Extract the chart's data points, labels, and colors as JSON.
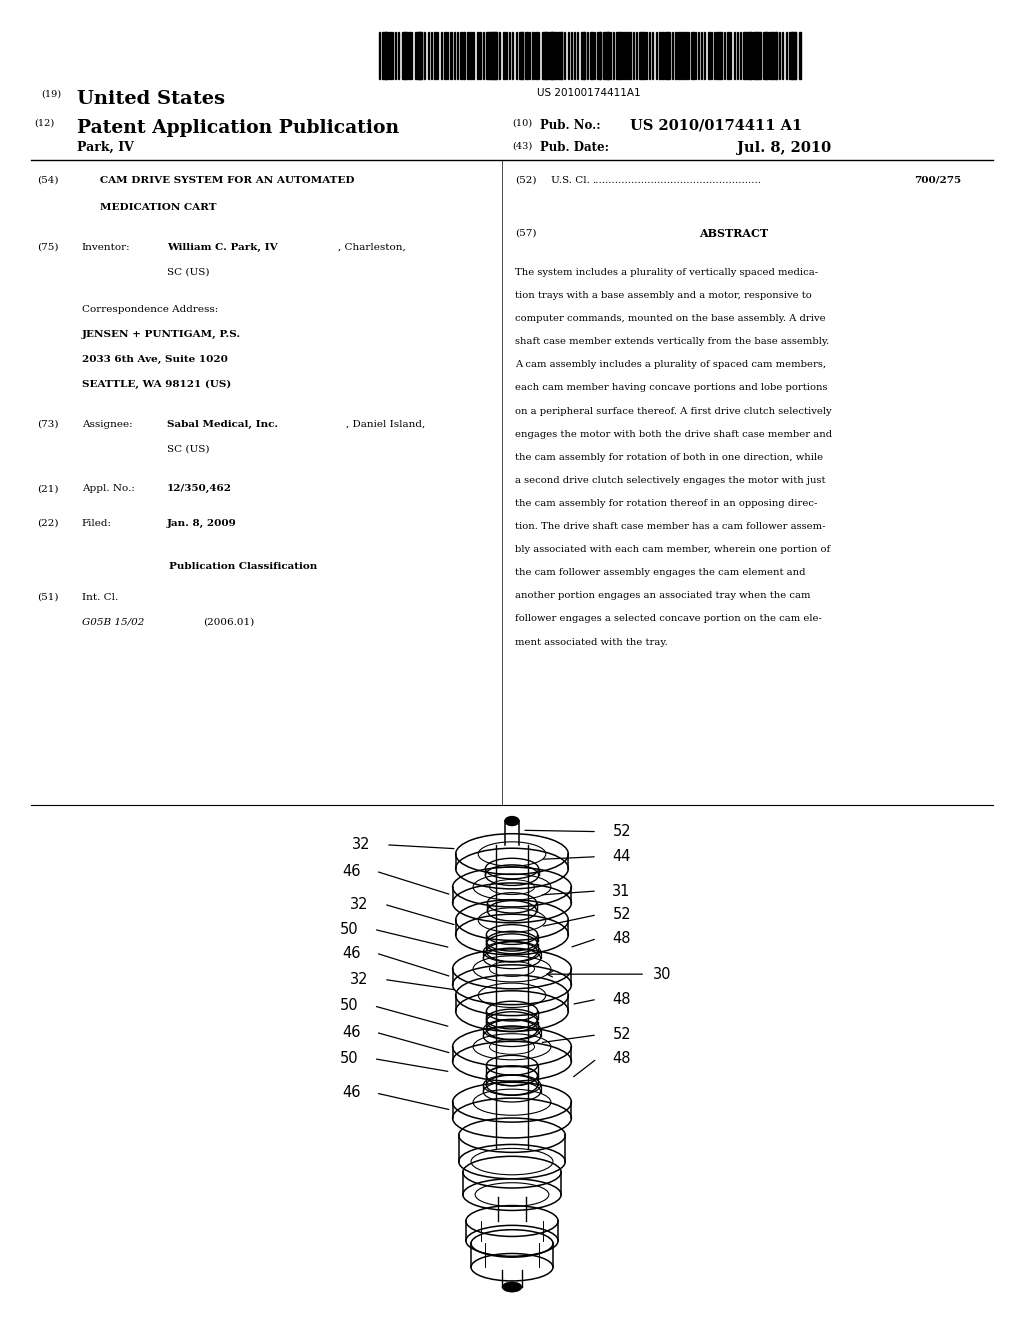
{
  "background_color": "#ffffff",
  "barcode_text": "US 20100174411A1",
  "header": {
    "number_19": "(19)",
    "us_label": "United States",
    "number_12": "(12)",
    "pub_label": "Patent Application Publication",
    "inventor_name": "Park, IV",
    "number_10": "(10)",
    "pub_no_label": "Pub. No.:",
    "pub_no": "US 2010/0174411 A1",
    "number_43": "(43)",
    "pub_date_label": "Pub. Date:",
    "pub_date": "Jul. 8, 2010"
  },
  "left_col": {
    "item54_num": "(54)",
    "item54_title_line1": "CAM DRIVE SYSTEM FOR AN AUTOMATED",
    "item54_title_line2": "MEDICATION CART",
    "item75_num": "(75)",
    "item75_label": "Inventor:",
    "item75_name_bold": "William C. Park, IV",
    "item75_name_rest": ", Charleston,",
    "item75_value_line2": "SC (US)",
    "corr_label": "Correspondence Address:",
    "corr_line1": "JENSEN + PUNTIGAM, P.S.",
    "corr_line2": "2033 6th Ave, Suite 1020",
    "corr_line3": "SEATTLE, WA 98121 (US)",
    "item73_num": "(73)",
    "item73_label": "Assignee:",
    "item73_name_bold": "Sabal Medical, Inc.",
    "item73_name_rest": ", Daniel Island,",
    "item73_value_line2": "SC (US)",
    "item21_num": "(21)",
    "item21_label": "Appl. No.:",
    "item21_value": "12/350,462",
    "item22_num": "(22)",
    "item22_label": "Filed:",
    "item22_value": "Jan. 8, 2009",
    "pub_class_label": "Publication Classification",
    "item51_num": "(51)",
    "item51_label": "Int. Cl.",
    "item51_class": "G05B 15/02",
    "item51_year": "(2006.01)"
  },
  "right_col": {
    "item52_num": "(52)",
    "item52_label": "U.S. Cl.",
    "item52_dots": "....................................................",
    "item52_value": "700/275",
    "item57_num": "(57)",
    "abstract_title": "ABSTRACT",
    "abstract_lines": [
      "The system includes a plurality of vertically spaced medica-",
      "tion trays with a base assembly and a motor, responsive to",
      "computer commands, mounted on the base assembly. A drive",
      "shaft case member extends vertically from the base assembly.",
      "A cam assembly includes a plurality of spaced cam members,",
      "each cam member having concave portions and lobe portions",
      "on a peripheral surface thereof. A first drive clutch selectively",
      "engages the motor with both the drive shaft case member and",
      "the cam assembly for rotation of both in one direction, while",
      "a second drive clutch selectively engages the motor with just",
      "the cam assembly for rotation thereof in an opposing direc-",
      "tion. The drive shaft case member has a cam follower assem-",
      "bly associated with each cam member, wherein one portion of",
      "the cam follower assembly engages the cam element and",
      "another portion engages an associated tray when the cam",
      "follower engages a selected concave portion on the cam ele-",
      "ment associated with the tray."
    ]
  }
}
